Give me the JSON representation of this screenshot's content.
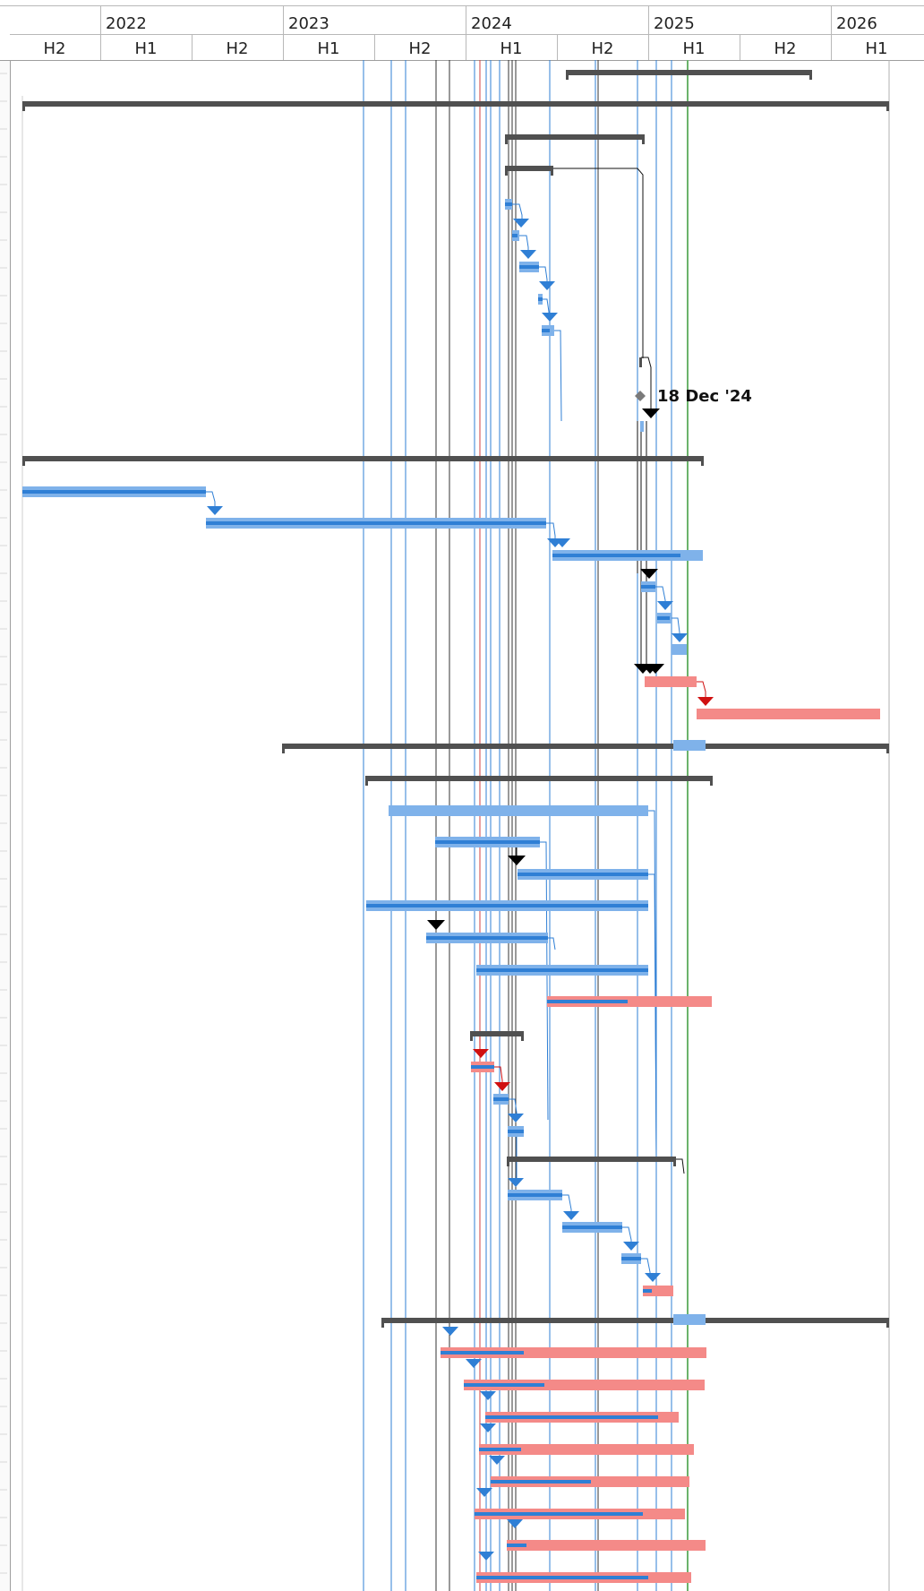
{
  "timescale": {
    "years": [
      "2022",
      "2023",
      "2024",
      "2025",
      "2026"
    ],
    "halves": [
      "H2",
      "H1",
      "H2",
      "H1",
      "H2",
      "H1",
      "H2",
      "H1",
      "H2",
      "H1"
    ]
  },
  "milestone_label": "18 Dec '24",
  "colors": {
    "summary": "#505050",
    "task": "#7fb2ea",
    "task_progress": "#2f7fd5",
    "critical": "#f48a88",
    "link": "#2f7fd5",
    "link_critical": "#d01010",
    "black": "#000000",
    "today_line": "#6bb36b",
    "status_line_red": "#d04040",
    "deadline_line": "#2f7fd5"
  },
  "icons": [
    "diamond-milestone-icon",
    "triangle-arrow-icon"
  ]
}
